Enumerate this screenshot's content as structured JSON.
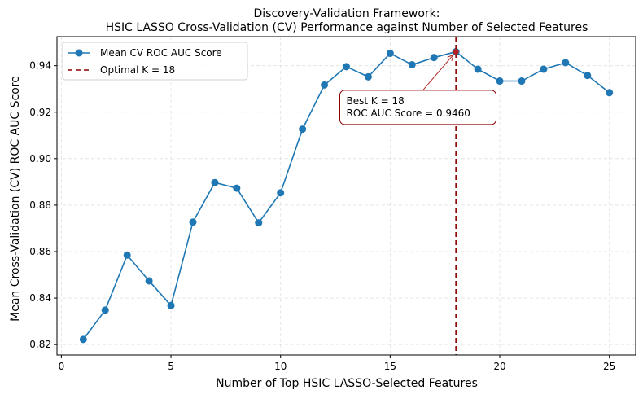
{
  "chart_data": {
    "type": "line",
    "title_lines": [
      "Discovery-Validation Framework:",
      "HSIC LASSO Cross-Validation (CV) Performance against Number of Selected Features"
    ],
    "xlabel": "Number of Top HSIC LASSO-Selected Features",
    "ylabel": "Mean Cross-Validation (CV) ROC AUC Score",
    "xlim": [
      -0.2,
      26.2
    ],
    "ylim": [
      0.8155,
      0.9525
    ],
    "x_ticks": [
      0,
      5,
      10,
      15,
      20,
      25
    ],
    "y_ticks": [
      0.82,
      0.84,
      0.86,
      0.88,
      0.9,
      0.92,
      0.94
    ],
    "y_tick_labels": [
      "0.82",
      "0.84",
      "0.86",
      "0.88",
      "0.90",
      "0.92",
      "0.94"
    ],
    "grid": true,
    "legend_position": "upper-left",
    "series": [
      {
        "name": "Mean CV ROC AUC Score",
        "color": "#1f77b4",
        "x": [
          1,
          2,
          3,
          4,
          5,
          6,
          7,
          8,
          9,
          10,
          11,
          12,
          13,
          14,
          15,
          16,
          17,
          18,
          19,
          20,
          21,
          22,
          23,
          24,
          25
        ],
        "y": [
          0.8222,
          0.8348,
          0.8585,
          0.8474,
          0.8368,
          0.8727,
          0.8897,
          0.8873,
          0.8724,
          0.8853,
          0.9127,
          0.9317,
          0.9396,
          0.9352,
          0.9453,
          0.9404,
          0.9435,
          0.946,
          0.9385,
          0.9334,
          0.9334,
          0.9385,
          0.9413,
          0.9358,
          0.9284
        ]
      }
    ],
    "reference_line": {
      "label": "Optimal K = 18",
      "x": 18,
      "color": "#8b0000"
    },
    "annotation": {
      "line1": "Best K = 18",
      "line2": "ROC AUC Score = 0.9460",
      "point_x": 18,
      "point_y": 0.946,
      "text_x": 13,
      "text_y": 0.9175,
      "point_color": "#b22222",
      "arrow_color": "#b22222",
      "box_edge_color": "#8b0000"
    }
  }
}
